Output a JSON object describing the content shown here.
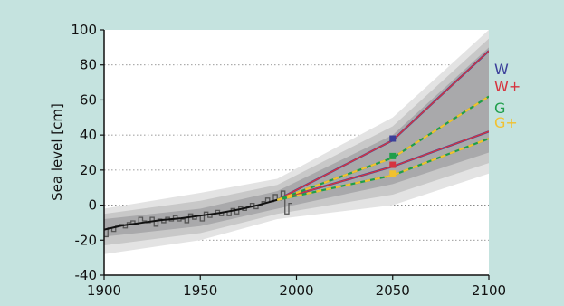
{
  "chart_data": {
    "type": "line",
    "title": "",
    "xlabel": "",
    "ylabel": "Sea level [cm]",
    "xlim": [
      1900,
      2100
    ],
    "ylim": [
      -40,
      100
    ],
    "x_ticks": [
      1900,
      1950,
      2000,
      2050,
      2100
    ],
    "y_ticks": [
      -40,
      -20,
      0,
      20,
      40,
      60,
      80,
      100
    ],
    "grid": "horizontal dotted",
    "colors": {
      "background": "#c5e3df",
      "plot_area": "#ffffff",
      "W": "#3b3f9a",
      "W+": "#d6343f",
      "G": "#1f9e4a",
      "G+": "#f2c12e",
      "observed": "#555555",
      "smoothed": "#111111",
      "uncertainty": "#9a9a9a"
    },
    "legend": {
      "placement": "right",
      "entries": [
        {
          "label": "W",
          "color": "#3b3f9a"
        },
        {
          "label": "W+",
          "color": "#d6343f"
        },
        {
          "label": "G",
          "color": "#1f9e4a"
        },
        {
          "label": "G+",
          "color": "#f2c12e"
        }
      ]
    },
    "observed": {
      "x": [
        1900,
        1902,
        1904,
        1906,
        1908,
        1910,
        1912,
        1914,
        1916,
        1918,
        1920,
        1922,
        1924,
        1926,
        1928,
        1930,
        1932,
        1934,
        1936,
        1938,
        1940,
        1942,
        1944,
        1946,
        1948,
        1950,
        1952,
        1954,
        1956,
        1958,
        1960,
        1962,
        1964,
        1966,
        1968,
        1970,
        1972,
        1974,
        1976,
        1978,
        1980,
        1982,
        1984,
        1986,
        1988,
        1990,
        1992,
        1994,
        1996
      ],
      "y": [
        -18,
        -13,
        -15,
        -12,
        -11,
        -13,
        -10,
        -9,
        -11,
        -7,
        -9,
        -10,
        -7,
        -12,
        -8,
        -10,
        -7,
        -9,
        -6,
        -9,
        -8,
        -10,
        -5,
        -8,
        -6,
        -9,
        -4,
        -7,
        -5,
        -3,
        -6,
        -4,
        -6,
        -2,
        -5,
        -1,
        -3,
        -1,
        1,
        -2,
        0,
        2,
        4,
        2,
        6,
        3,
        8,
        -5,
        1
      ]
    },
    "smoothed": {
      "x": [
        1900,
        1910,
        1920,
        1930,
        1940,
        1950,
        1960,
        1970,
        1980,
        1990,
        1995
      ],
      "y": [
        -14,
        -11.5,
        -10,
        -8.5,
        -7.5,
        -6,
        -4.5,
        -2.5,
        0,
        3,
        4.5
      ]
    },
    "scenarios": [
      {
        "name": "W",
        "style": "solid",
        "color": "#3b3f9a",
        "x": [
          1990,
          2050,
          2100
        ],
        "y": [
          3,
          37,
          88
        ]
      },
      {
        "name": "W+",
        "style": "solid",
        "color": "#d6343f",
        "x": [
          1990,
          2050,
          2100
        ],
        "y": [
          3,
          22,
          42
        ]
      },
      {
        "name": "G",
        "style": "dashed",
        "color": "#1f9e4a",
        "x": [
          1990,
          2050,
          2100
        ],
        "y": [
          3,
          27,
          62
        ]
      },
      {
        "name": "G+",
        "style": "dashed",
        "color": "#f2c12e",
        "x": [
          1990,
          2050,
          2100
        ],
        "y": [
          3,
          17,
          38
        ]
      }
    ],
    "markers_2050": [
      {
        "name": "W",
        "x": 2050,
        "y": 38,
        "color": "#3b3f9a"
      },
      {
        "name": "G",
        "x": 2050,
        "y": 28,
        "color": "#1f9e4a"
      },
      {
        "name": "W+",
        "x": 2050,
        "y": 23,
        "color": "#d6343f"
      },
      {
        "name": "G+",
        "x": 2050,
        "y": 18,
        "color": "#f2c12e"
      }
    ],
    "uncertainty_band": {
      "x": [
        1900,
        1950,
        1990,
        2050,
        2100
      ],
      "outer_lower": [
        -28,
        -20,
        -8,
        0,
        18
      ],
      "outer_upper": [
        -2,
        7,
        15,
        50,
        100
      ],
      "inner_lower": [
        -18,
        -12,
        -2,
        12,
        30
      ],
      "inner_upper": [
        -8,
        -2,
        8,
        40,
        90
      ]
    }
  }
}
